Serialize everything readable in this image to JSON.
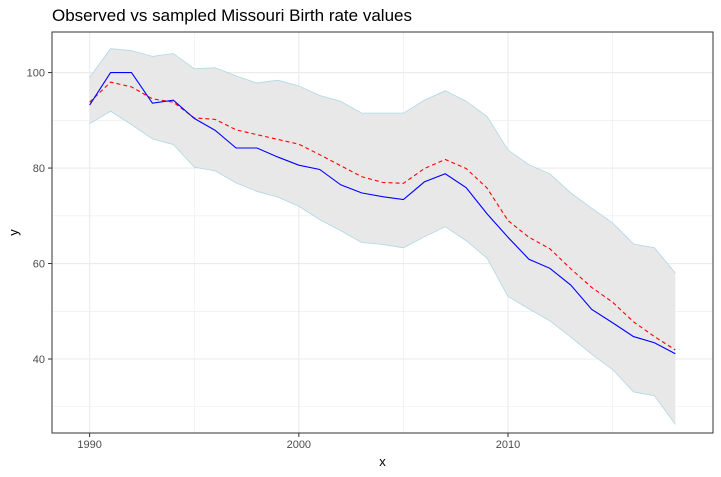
{
  "chart_data": {
    "type": "line",
    "title": "Observed vs sampled Missouri Birth rate values",
    "xlabel": "x",
    "ylabel": "y",
    "xlim": [
      1988.2,
      2019.8
    ],
    "ylim": [
      24.5,
      108.5
    ],
    "x_ticks": [
      1990,
      2000,
      2010
    ],
    "y_ticks": [
      40,
      60,
      80,
      100
    ],
    "grid": true,
    "legend": "none",
    "colors": {
      "observed": "#0000ff",
      "sampled": "#ff0000",
      "band_fill": "#e8e8e8",
      "band_edge": "#add8e6",
      "grid": "#ebebeb",
      "panel_border": "#333333"
    },
    "x": [
      1990,
      1991,
      1992,
      1993,
      1994,
      1995,
      1996,
      1997,
      1998,
      1999,
      2000,
      2001,
      2002,
      2003,
      2004,
      2005,
      2006,
      2007,
      2008,
      2009,
      2010,
      2011,
      2012,
      2013,
      2014,
      2015,
      2016,
      2017,
      2018
    ],
    "series": [
      {
        "style": "solid",
        "values": [
          93.2,
          100.0,
          100.0,
          93.6,
          94.2,
          90.4,
          87.9,
          84.2,
          84.2,
          82.3,
          80.6,
          79.7,
          76.5,
          74.8,
          74.0,
          73.4,
          77.1,
          78.8,
          75.9,
          70.4,
          65.5,
          60.9,
          59.0,
          55.5,
          50.4,
          47.6,
          44.7,
          43.4,
          41.1
        ]
      },
      {
        "style": "dashed",
        "values": [
          93.8,
          98.0,
          97.0,
          94.5,
          93.8,
          90.5,
          90.2,
          88.0,
          87.0,
          86.0,
          85.0,
          82.8,
          80.5,
          78.2,
          77.0,
          76.8,
          79.9,
          81.8,
          79.9,
          75.8,
          69.0,
          65.5,
          63.1,
          58.9,
          55.0,
          51.9,
          47.8,
          44.7,
          41.9
        ]
      }
    ],
    "band": {
      "upper": [
        99.0,
        105.0,
        104.6,
        103.4,
        104.0,
        100.8,
        101.0,
        99.3,
        97.8,
        98.4,
        97.2,
        95.2,
        94.0,
        91.5,
        91.5,
        91.5,
        94.2,
        96.2,
        94.0,
        90.8,
        83.8,
        80.7,
        78.8,
        74.8,
        71.6,
        68.5,
        64.1,
        63.3,
        58.0
      ],
      "lower": [
        89.3,
        91.9,
        89.1,
        86.1,
        84.9,
        80.2,
        79.4,
        76.9,
        75.1,
        73.9,
        72.0,
        69.2,
        66.9,
        64.4,
        64.0,
        63.3,
        65.6,
        67.7,
        64.8,
        61.1,
        53.1,
        50.5,
        48.0,
        44.6,
        41.0,
        37.8,
        33.1,
        32.3,
        26.3
      ]
    }
  }
}
